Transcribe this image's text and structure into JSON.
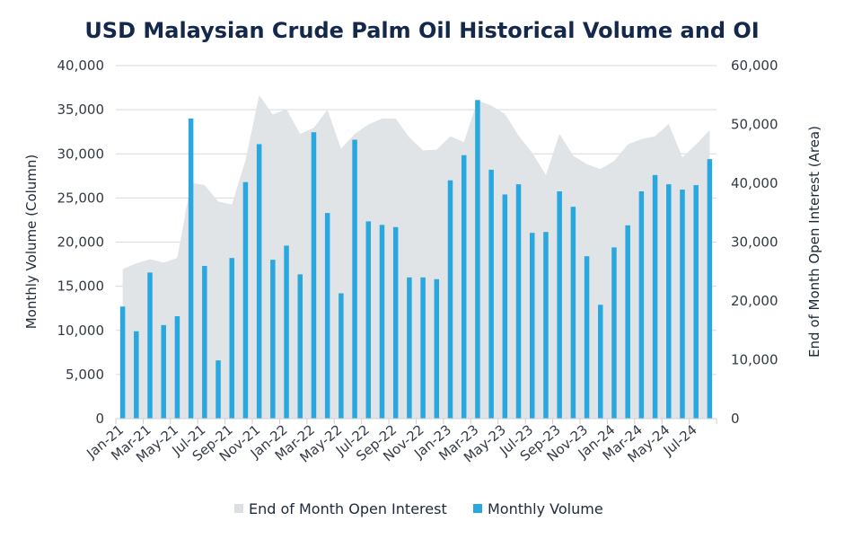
{
  "chart_data": {
    "type": "bar+area",
    "title": "USD Malaysian Crude Palm Oil Historical Volume and OI",
    "ylabel": "Monthly Volume (Column)",
    "y2label": "End of Month Open Interest (Area)",
    "ylim": [
      0,
      40000
    ],
    "y2lim": [
      0,
      60000
    ],
    "yticks": [
      "0",
      "5,000",
      "10,000",
      "15,000",
      "20,000",
      "25,000",
      "30,000",
      "35,000",
      "40,000"
    ],
    "y2ticks": [
      "0",
      "10,000",
      "20,000",
      "30,000",
      "40,000",
      "50,000",
      "60,000"
    ],
    "ytick_values": [
      0,
      5000,
      10000,
      15000,
      20000,
      25000,
      30000,
      35000,
      40000
    ],
    "y2tick_values": [
      0,
      10000,
      20000,
      30000,
      40000,
      50000,
      60000
    ],
    "grid": true,
    "legend_position": "bottom",
    "categories": [
      "Jan-21",
      "Feb-21",
      "Mar-21",
      "Apr-21",
      "May-21",
      "Jun-21",
      "Jul-21",
      "Aug-21",
      "Sep-21",
      "Oct-21",
      "Nov-21",
      "Dec-21",
      "Jan-22",
      "Feb-22",
      "Mar-22",
      "Apr-22",
      "May-22",
      "Jun-22",
      "Jul-22",
      "Aug-22",
      "Sep-22",
      "Oct-22",
      "Nov-22",
      "Dec-22",
      "Jan-23",
      "Feb-23",
      "Mar-23",
      "Apr-23",
      "May-23",
      "Jun-23",
      "Jul-23",
      "Aug-23",
      "Sep-23",
      "Oct-23",
      "Nov-23",
      "Dec-23",
      "Jan-24",
      "Feb-24",
      "Mar-24",
      "Apr-24",
      "May-24",
      "Jun-24",
      "Jul-24",
      "Aug-24"
    ],
    "xtick_labels": [
      "Jan-21",
      "Mar-21",
      "May-21",
      "Jul-21",
      "Sep-21",
      "Nov-21",
      "Jan-22",
      "Mar-22",
      "May-22",
      "Jul-22",
      "Sep-22",
      "Nov-22",
      "Jan-23",
      "Mar-23",
      "May-23",
      "Jul-23",
      "Sep-23",
      "Nov-23",
      "Jan-24",
      "Mar-24",
      "May-24",
      "Jul-24"
    ],
    "series": [
      {
        "name": "End of Month Open Interest",
        "type": "area",
        "axis": "right",
        "color": "#e1e4e7",
        "values": [
          25400,
          26400,
          27100,
          26500,
          27300,
          40100,
          39700,
          36900,
          36400,
          43900,
          55000,
          51700,
          52600,
          48400,
          49400,
          52500,
          45900,
          48400,
          50000,
          51000,
          51000,
          47800,
          45600,
          45700,
          48000,
          47000,
          54100,
          53200,
          51800,
          48100,
          45200,
          41400,
          48400,
          44700,
          43250,
          42400,
          43800,
          46600,
          47500,
          48000,
          50100,
          44400,
          46600,
          49000
        ]
      },
      {
        "name": "Monthly Volume",
        "type": "bar",
        "axis": "left",
        "color": "#29a8e0",
        "values": [
          12700,
          9900,
          16550,
          10600,
          11600,
          34000,
          17300,
          6600,
          18200,
          26800,
          31100,
          18000,
          19600,
          16350,
          32450,
          23300,
          14200,
          31600,
          22350,
          21950,
          21700,
          16000,
          16000,
          15800,
          27000,
          29850,
          36100,
          28200,
          25400,
          26550,
          21050,
          21150,
          25750,
          24000,
          18400,
          12900,
          19400,
          21900,
          25750,
          27600,
          26550,
          25950,
          26450,
          29400
        ]
      }
    ]
  },
  "legend": [
    {
      "label": "End of Month Open Interest",
      "color": "#e1e4e7"
    },
    {
      "label": "Monthly Volume",
      "color": "#29a8e0"
    }
  ]
}
